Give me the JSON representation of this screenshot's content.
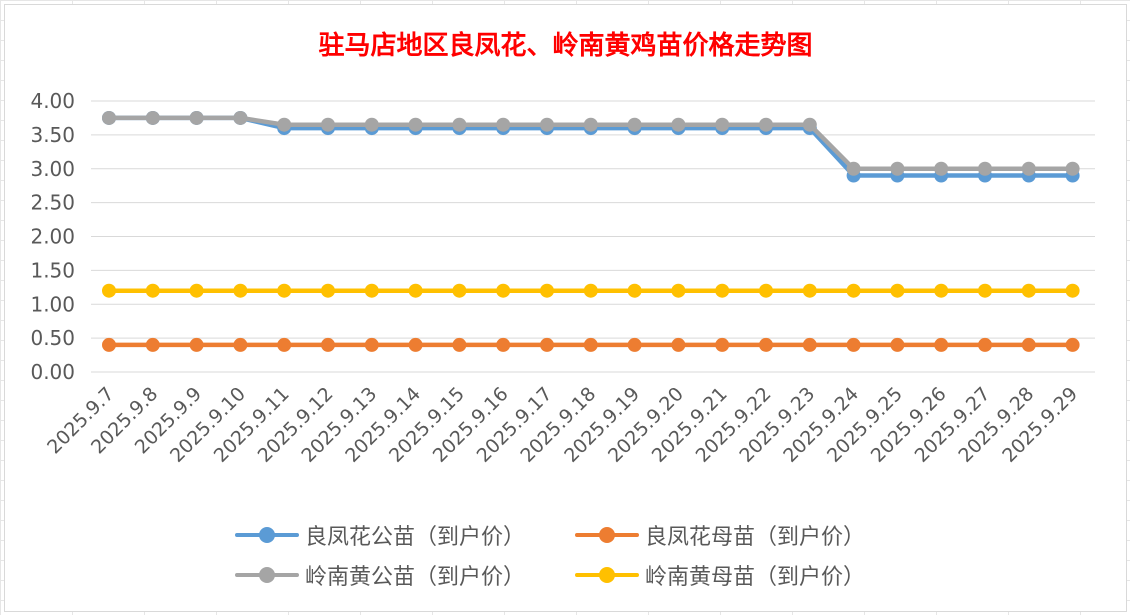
{
  "chart_data": {
    "type": "line",
    "title": "驻马店地区良凤花、岭南黄鸡苗价格走势图",
    "xlabel": "",
    "ylabel": "",
    "ylim": [
      0,
      4
    ],
    "ytick_step": 0.5,
    "ytick_labels": [
      "0.00",
      "0.50",
      "1.00",
      "1.50",
      "2.00",
      "2.50",
      "3.00",
      "3.50",
      "4.00"
    ],
    "grid": true,
    "legend_position": "bottom",
    "categories": [
      "2025.9.7",
      "2025.9.8",
      "2025.9.9",
      "2025.9.10",
      "2025.9.11",
      "2025.9.12",
      "2025.9.13",
      "2025.9.14",
      "2025.9.15",
      "2025.9.16",
      "2025.9.17",
      "2025.9.18",
      "2025.9.19",
      "2025.9.20",
      "2025.9.21",
      "2025.9.22",
      "2025.9.23",
      "2025.9.24",
      "2025.9.25",
      "2025.9.26",
      "2025.9.27",
      "2025.9.28",
      "2025.9.29"
    ],
    "series": [
      {
        "name": "良凤花公苗（到户价）",
        "color": "#5b9bd5",
        "values": [
          3.75,
          3.75,
          3.75,
          3.75,
          3.6,
          3.6,
          3.6,
          3.6,
          3.6,
          3.6,
          3.6,
          3.6,
          3.6,
          3.6,
          3.6,
          3.6,
          3.6,
          2.9,
          2.9,
          2.9,
          2.9,
          2.9,
          2.9
        ]
      },
      {
        "name": "良凤花母苗（到户价）",
        "color": "#ed7d31",
        "values": [
          0.4,
          0.4,
          0.4,
          0.4,
          0.4,
          0.4,
          0.4,
          0.4,
          0.4,
          0.4,
          0.4,
          0.4,
          0.4,
          0.4,
          0.4,
          0.4,
          0.4,
          0.4,
          0.4,
          0.4,
          0.4,
          0.4,
          0.4
        ]
      },
      {
        "name": "岭南黄公苗（到户价）",
        "color": "#a5a5a5",
        "values": [
          3.75,
          3.75,
          3.75,
          3.75,
          3.65,
          3.65,
          3.65,
          3.65,
          3.65,
          3.65,
          3.65,
          3.65,
          3.65,
          3.65,
          3.65,
          3.65,
          3.65,
          3.0,
          3.0,
          3.0,
          3.0,
          3.0,
          3.0
        ]
      },
      {
        "name": "岭南黄母苗（到户价）",
        "color": "#ffc000",
        "values": [
          1.2,
          1.2,
          1.2,
          1.2,
          1.2,
          1.2,
          1.2,
          1.2,
          1.2,
          1.2,
          1.2,
          1.2,
          1.2,
          1.2,
          1.2,
          1.2,
          1.2,
          1.2,
          1.2,
          1.2,
          1.2,
          1.2,
          1.2
        ]
      }
    ]
  }
}
